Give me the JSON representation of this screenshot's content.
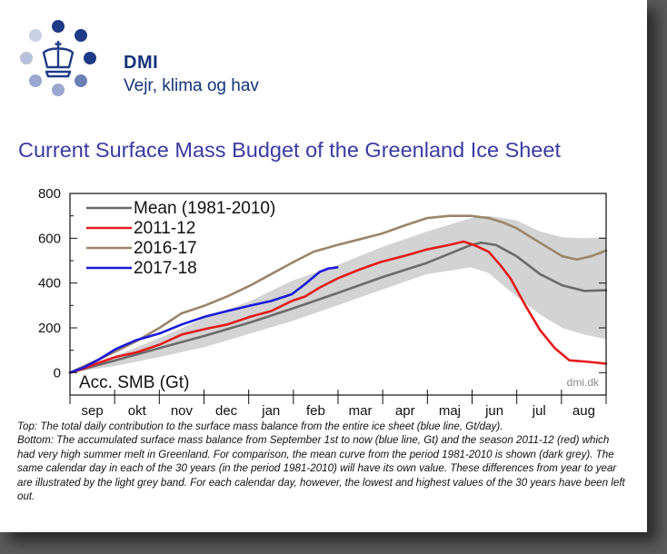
{
  "header": {
    "brand": "DMI",
    "tagline": "Vejr, klima og hav"
  },
  "logo": {
    "icon": "crown-icon",
    "dot_color_dark": "#1f3b87",
    "dot_color_light": "#b9c2dc"
  },
  "chart_title": "Current Surface Mass Budget of the Greenland Ice Sheet",
  "chart_data": {
    "type": "line",
    "ylabel_inset": "Acc. SMB (Gt)",
    "watermark": "dmi.dk",
    "yticks": [
      0,
      200,
      400,
      600,
      800
    ],
    "ylim": [
      -100,
      800
    ],
    "months": [
      "sep",
      "okt",
      "nov",
      "dec",
      "jan",
      "feb",
      "mar",
      "apr",
      "maj",
      "jun",
      "jul",
      "aug"
    ],
    "xlim": [
      0,
      365
    ],
    "legend_position": "top-left",
    "band": {
      "color": "#d3d3d3",
      "x": [
        0,
        31,
        61,
        92,
        123,
        151,
        182,
        212,
        243,
        273,
        285,
        304,
        320,
        335,
        350,
        365
      ],
      "lower": [
        0,
        30,
        70,
        115,
        175,
        230,
        300,
        370,
        440,
        470,
        445,
        340,
        260,
        200,
        170,
        150
      ],
      "upper": [
        0,
        75,
        155,
        245,
        320,
        410,
        480,
        560,
        630,
        690,
        700,
        680,
        630,
        605,
        600,
        605
      ]
    },
    "series": [
      {
        "name": "Mean (1981-2010)",
        "color": "#6a6a6a",
        "x": [
          0,
          31,
          61,
          92,
          123,
          151,
          182,
          212,
          243,
          258,
          273,
          280,
          290,
          304,
          320,
          335,
          350,
          365
        ],
        "y": [
          0,
          55,
          110,
          165,
          225,
          285,
          355,
          425,
          490,
          530,
          570,
          580,
          570,
          520,
          440,
          390,
          365,
          368
        ]
      },
      {
        "name": "2011-12",
        "color": "#e41a1c",
        "x": [
          0,
          10,
          20,
          31,
          45,
          61,
          76,
          92,
          107,
          123,
          137,
          151,
          160,
          170,
          182,
          197,
          212,
          227,
          243,
          258,
          268,
          275,
          285,
          293,
          300,
          310,
          320,
          330,
          340,
          350,
          358,
          365
        ],
        "y": [
          0,
          20,
          45,
          70,
          90,
          125,
          170,
          195,
          215,
          250,
          275,
          320,
          340,
          380,
          420,
          460,
          495,
          520,
          550,
          570,
          585,
          570,
          540,
          480,
          420,
          300,
          190,
          110,
          55,
          50,
          45,
          40
        ]
      },
      {
        "name": "2016-17",
        "color": "#9b8569",
        "x": [
          0,
          10,
          20,
          31,
          45,
          61,
          76,
          92,
          107,
          123,
          137,
          151,
          166,
          182,
          197,
          212,
          227,
          243,
          258,
          273,
          285,
          295,
          304,
          315,
          325,
          335,
          345,
          355,
          365
        ],
        "y": [
          0,
          30,
          60,
          95,
          140,
          200,
          265,
          300,
          340,
          390,
          440,
          490,
          540,
          570,
          595,
          620,
          655,
          690,
          700,
          700,
          690,
          670,
          645,
          600,
          560,
          520,
          505,
          520,
          545
        ]
      },
      {
        "name": "2017-18",
        "color": "#1a1adb",
        "x": [
          0,
          10,
          20,
          31,
          45,
          61,
          76,
          92,
          107,
          123,
          137,
          151,
          160,
          170,
          176,
          182
        ],
        "y": [
          0,
          25,
          60,
          105,
          145,
          175,
          215,
          250,
          275,
          300,
          320,
          350,
          395,
          450,
          465,
          470
        ]
      }
    ]
  },
  "caption": [
    "Top: The total daily contribution to the surface mass balance from the entire ice sheet (blue line, Gt/day).",
    "Bottom: The accumulated surface mass balance from September 1st to now (blue line, Gt) and the season 2011-12 (red) which had very high summer melt in Greenland. For comparison, the mean curve from the period 1981-2010 is shown (dark grey). The same calendar day in each of the 30 years (in the period 1981-2010) will have its own value. These differences from year to year are illustrated by the light grey band. For each calendar day, however, the lowest and highest values of the 30 years have been left out."
  ]
}
